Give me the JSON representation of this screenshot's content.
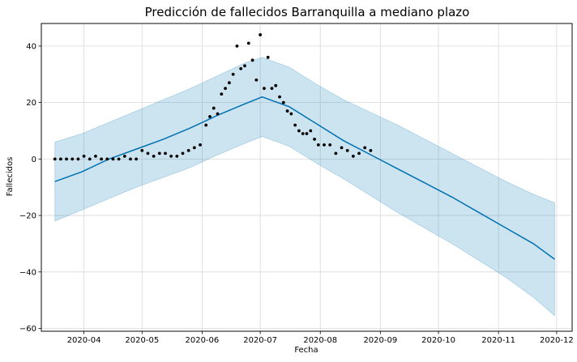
{
  "chart_data": {
    "type": "line",
    "title": "Predicción de fallecidos Barranquilla a mediano plazo",
    "xlabel": "Fecha",
    "ylabel": "Fallecidos",
    "x_ticks": [
      "2020-04",
      "2020-05",
      "2020-06",
      "2020-07",
      "2020-08",
      "2020-09",
      "2020-10",
      "2020-11",
      "2020-12"
    ],
    "y_ticks": [
      -60,
      -40,
      -20,
      0,
      20,
      40
    ],
    "xlim": [
      "2020-03-10",
      "2020-12-09"
    ],
    "ylim": [
      -61,
      48
    ],
    "grid": true,
    "colors": {
      "forecast": "#0072B2",
      "interval": "#0072B2",
      "observed": "#000000"
    },
    "series": [
      {
        "kind": "forecast",
        "x": [
          "2020-03-17",
          "2020-03-31",
          "2020-04-14",
          "2020-04-28",
          "2020-05-12",
          "2020-05-26",
          "2020-06-09",
          "2020-06-23",
          "2020-07-02",
          "2020-07-16",
          "2020-07-30",
          "2020-08-13",
          "2020-08-27",
          "2020-09-10",
          "2020-09-24",
          "2020-10-08",
          "2020-10-22",
          "2020-11-05",
          "2020-11-19",
          "2020-11-30"
        ],
        "values": [
          -8,
          -4.5,
          0,
          3.5,
          7,
          11,
          15.5,
          19.5,
          22,
          18.5,
          12.5,
          6.5,
          1.5,
          -3.5,
          -8.5,
          -13.5,
          -19,
          -24.5,
          -30,
          -35.5
        ]
      },
      {
        "kind": "uncertainty_interval",
        "x": [
          "2020-03-17",
          "2020-03-31",
          "2020-04-14",
          "2020-04-28",
          "2020-05-12",
          "2020-05-26",
          "2020-06-09",
          "2020-06-23",
          "2020-07-02",
          "2020-07-16",
          "2020-07-30",
          "2020-08-13",
          "2020-08-27",
          "2020-09-10",
          "2020-09-24",
          "2020-10-08",
          "2020-10-22",
          "2020-11-05",
          "2020-11-19",
          "2020-11-30"
        ],
        "upper": [
          6,
          9,
          13,
          17,
          21,
          25,
          29.5,
          34,
          36,
          32.5,
          26.5,
          21,
          16.5,
          12,
          7,
          2,
          -3,
          -8,
          -12.5,
          -15.5
        ],
        "lower": [
          -22,
          -18,
          -14,
          -10,
          -6.5,
          -3,
          1.5,
          5.5,
          8,
          4.5,
          -1.5,
          -7,
          -13,
          -19,
          -24.5,
          -30,
          -36,
          -42,
          -49,
          -55.5
        ]
      },
      {
        "kind": "observed",
        "x": [
          "2020-03-17",
          "2020-03-20",
          "2020-03-23",
          "2020-03-26",
          "2020-03-29",
          "2020-04-01",
          "2020-04-04",
          "2020-04-07",
          "2020-04-10",
          "2020-04-13",
          "2020-04-16",
          "2020-04-19",
          "2020-04-22",
          "2020-04-25",
          "2020-04-28",
          "2020-05-01",
          "2020-05-04",
          "2020-05-07",
          "2020-05-10",
          "2020-05-13",
          "2020-05-16",
          "2020-05-19",
          "2020-05-22",
          "2020-05-25",
          "2020-05-28",
          "2020-05-31",
          "2020-06-03",
          "2020-06-05",
          "2020-06-07",
          "2020-06-09",
          "2020-06-11",
          "2020-06-13",
          "2020-06-15",
          "2020-06-17",
          "2020-06-19",
          "2020-06-21",
          "2020-06-23",
          "2020-06-25",
          "2020-06-27",
          "2020-06-29",
          "2020-07-01",
          "2020-07-03",
          "2020-07-05",
          "2020-07-07",
          "2020-07-09",
          "2020-07-11",
          "2020-07-13",
          "2020-07-15",
          "2020-07-17",
          "2020-07-19",
          "2020-07-21",
          "2020-07-23",
          "2020-07-25",
          "2020-07-27",
          "2020-07-29",
          "2020-07-31",
          "2020-08-03",
          "2020-08-06",
          "2020-08-09",
          "2020-08-12",
          "2020-08-15",
          "2020-08-18",
          "2020-08-21",
          "2020-08-24",
          "2020-08-27"
        ],
        "values": [
          0,
          0,
          0,
          0,
          0,
          1,
          0,
          1,
          0,
          0,
          0,
          0,
          1,
          0,
          0,
          3,
          2,
          1,
          2,
          2,
          1,
          1,
          2,
          3,
          4,
          5,
          12,
          15,
          18,
          16,
          23,
          25,
          27,
          30,
          40,
          32,
          33,
          41,
          35,
          28,
          44,
          25,
          36,
          25,
          26,
          22,
          20,
          17,
          16,
          12,
          10,
          9,
          9,
          10,
          7,
          5,
          5,
          5,
          2,
          4,
          3,
          1,
          2,
          4,
          3
        ]
      }
    ]
  }
}
